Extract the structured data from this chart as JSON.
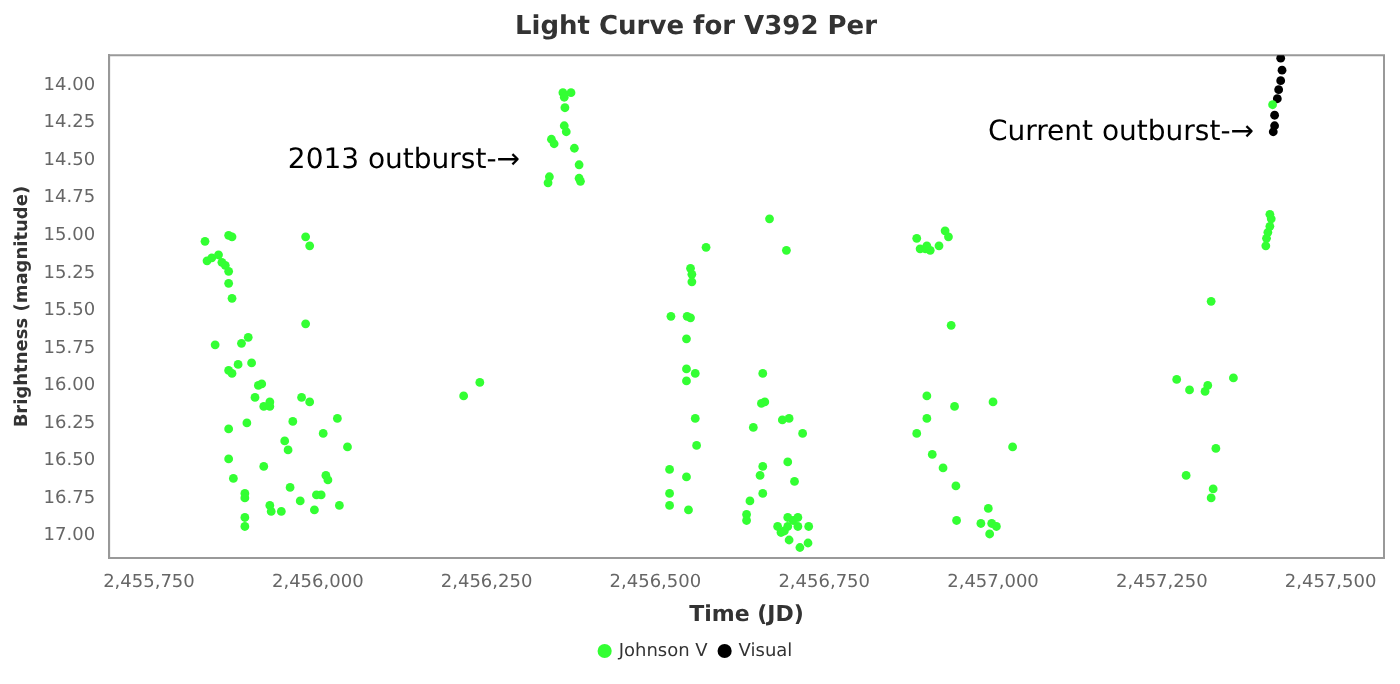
{
  "chart_data": {
    "type": "scatter",
    "title": "Light Curve for V392 Per",
    "xlabel": "Time (JD)",
    "ylabel": "Brightness (magnitude)",
    "xlim": [
      2455691,
      2457579
    ],
    "xticks": [
      {
        "value": 2455750,
        "label": "2,455,750"
      },
      {
        "value": 2456000,
        "label": "2,456,000"
      },
      {
        "value": 2456250,
        "label": "2,456,250"
      },
      {
        "value": 2456500,
        "label": "2,456,500"
      },
      {
        "value": 2456750,
        "label": "2,456,750"
      },
      {
        "value": 2457000,
        "label": "2,457,000"
      },
      {
        "value": 2457250,
        "label": "2,457,250"
      },
      {
        "value": 2457500,
        "label": "2,457,500"
      }
    ],
    "ylim": [
      17.15,
      13.8
    ],
    "yticks": [
      {
        "value": 14,
        "label": "14.00"
      },
      {
        "value": 14.25,
        "label": "14.25"
      },
      {
        "value": 14.5,
        "label": "14.50"
      },
      {
        "value": 14.75,
        "label": "14.75"
      },
      {
        "value": 15,
        "label": "15.00"
      },
      {
        "value": 15.25,
        "label": "15.25"
      },
      {
        "value": 15.5,
        "label": "15.50"
      },
      {
        "value": 15.75,
        "label": "15.75"
      },
      {
        "value": 16,
        "label": "16.00"
      },
      {
        "value": 16.25,
        "label": "16.25"
      },
      {
        "value": 16.5,
        "label": "16.50"
      },
      {
        "value": 16.75,
        "label": "16.75"
      },
      {
        "value": 17,
        "label": "17.00"
      }
    ],
    "grid": false,
    "legend": "bottom",
    "marker": "circle",
    "annotations": [
      "2013 outburst-→",
      "Current outburst-→"
    ],
    "series": [
      {
        "name": "Johnson V",
        "color": "#33ff33",
        "x": [
          2455833,
          2455836,
          2455843,
          2455853,
          2455858,
          2455863,
          2455868,
          2455868,
          2455873,
          2455868,
          2455873,
          2455848,
          2455868,
          2455873,
          2455887,
          2455897,
          2455902,
          2455882,
          2455912,
          2455917,
          2455907,
          2455920,
          2455929,
          2455929,
          2455895,
          2455868,
          2455868,
          2455875,
          2455892,
          2455892,
          2455892,
          2455892,
          2455920,
          2455929,
          2455931,
          2455946,
          2455959,
          2455951,
          2455956,
          2455963,
          2455976,
          2455988,
          2455982,
          2455988,
          2455982,
          2455974,
          2455995,
          2455998,
          2456005,
          2456012,
          2456015,
          2456008,
          2456029,
          2456044,
          2456032,
          2456216,
          2456240,
          2456363,
          2456375,
          2456365,
          2456366,
          2456365,
          2456368,
          2456346,
          2456350,
          2456380,
          2456387,
          2456343,
          2456341,
          2456387,
          2456389,
          2456523,
          2456547,
          2456552,
          2456552,
          2456554,
          2456554,
          2456575,
          2456546,
          2456546,
          2456546,
          2456559,
          2456559,
          2456561,
          2456521,
          2456521,
          2456521,
          2456546,
          2456549,
          2456669,
          2456694,
          2456659,
          2456662,
          2456657,
          2456645,
          2456688,
          2456698,
          2456718,
          2456696,
          2456706,
          2456659,
          2456655,
          2456659,
          2456640,
          2456635,
          2456635,
          2456681,
          2456686,
          2456696,
          2456704,
          2456711,
          2456691,
          2456727,
          2456698,
          2456714,
          2456726,
          2456696,
          2456711,
          2456887,
          2456892,
          2456900,
          2456907,
          2456920,
          2456929,
          2456934,
          2456902,
          2456938,
          2456902,
          2456902,
          2456943,
          2456887,
          2457000,
          2456910,
          2456926,
          2456945,
          2457029,
          2456946,
          2456982,
          2456993,
          2456998,
          2457005,
          2456995,
          2457272,
          2457291,
          2457314,
          2457318,
          2457356,
          2457323,
          2457330,
          2457286,
          2457326,
          2457323,
          2457410,
          2457412,
          2457410,
          2457407,
          2457405,
          2457404,
          2457414
        ],
        "values": [
          15.04,
          15.17,
          15.15,
          15.13,
          15.18,
          15.2,
          15.24,
          15.0,
          15.01,
          15.32,
          15.42,
          15.73,
          15.9,
          15.92,
          15.72,
          15.68,
          15.85,
          15.86,
          16.0,
          15.99,
          16.08,
          16.14,
          16.14,
          16.11,
          16.25,
          16.29,
          16.49,
          16.62,
          16.72,
          16.75,
          16.88,
          16.94,
          16.54,
          16.8,
          16.84,
          16.84,
          16.68,
          16.37,
          16.43,
          16.24,
          16.08,
          16.11,
          15.01,
          15.07,
          15.59,
          16.77,
          16.83,
          16.73,
          16.73,
          16.6,
          16.63,
          16.32,
          16.22,
          16.41,
          16.8,
          16.07,
          15.98,
          14.05,
          14.05,
          14.08,
          14.15,
          14.27,
          14.31,
          14.36,
          14.39,
          14.42,
          14.53,
          14.61,
          14.65,
          14.62,
          14.64,
          15.54,
          15.54,
          15.55,
          15.22,
          15.26,
          15.31,
          15.08,
          15.69,
          15.89,
          15.97,
          15.92,
          16.22,
          16.4,
          16.56,
          16.72,
          16.8,
          16.61,
          16.83,
          14.89,
          15.1,
          15.92,
          16.11,
          16.12,
          16.28,
          16.23,
          16.22,
          16.32,
          16.51,
          16.64,
          16.54,
          16.6,
          16.72,
          16.77,
          16.86,
          16.9,
          16.94,
          16.98,
          16.94,
          16.9,
          16.94,
          16.97,
          16.94,
          17.03,
          17.08,
          17.05,
          16.88,
          16.88,
          15.02,
          15.09,
          15.09,
          15.1,
          15.07,
          14.97,
          15.01,
          15.07,
          15.6,
          16.07,
          16.22,
          16.14,
          16.32,
          16.11,
          16.46,
          16.55,
          16.67,
          16.41,
          16.9,
          16.92,
          16.82,
          16.92,
          16.94,
          16.99,
          15.96,
          16.03,
          16.04,
          16.0,
          15.95,
          15.44,
          16.42,
          16.6,
          16.69,
          16.75,
          14.86,
          14.89,
          14.94,
          14.98,
          15.02,
          15.07,
          14.13
        ]
      },
      {
        "name": "Visual",
        "color": "#000000",
        "x": [
          2457426,
          2457428,
          2457426,
          2457423,
          2457421,
          2457417,
          2457417,
          2457415
        ],
        "values": [
          13.82,
          13.9,
          13.97,
          14.03,
          14.09,
          14.2,
          14.27,
          14.31
        ]
      }
    ]
  }
}
